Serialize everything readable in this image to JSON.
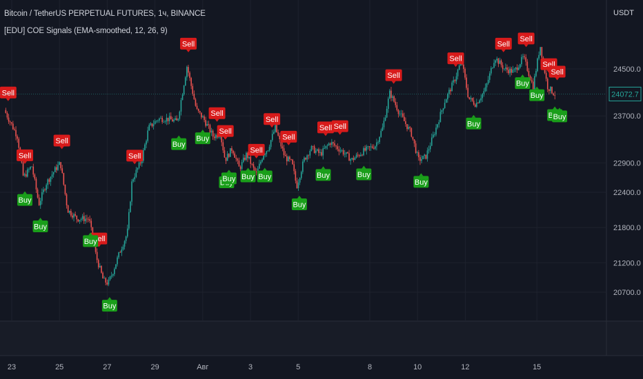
{
  "header": {
    "symbol_line": "Bitcoin / TetherUS PERPETUAL FUTURES, 1ч, BINANCE",
    "indicator_line": "[EDU] COE Signals (EMA-smoothed, 12, 26, 9)"
  },
  "price_axis": {
    "currency": "USDT"
  },
  "colors": {
    "background": "#131722",
    "grid": "#1e222d",
    "up": "#26a69a",
    "down": "#ef5350",
    "buy": "#1a9e1a",
    "sell": "#d81b1b",
    "price_label": "#26a69a"
  },
  "chart_data": {
    "type": "candlestick",
    "y_ticks": [
      24500.0,
      23700.0,
      22900.0,
      22400.0,
      21800.0,
      21200.0,
      20700.0
    ],
    "x_ticks": [
      {
        "label": "23",
        "day": 0
      },
      {
        "label": "25",
        "day": 2
      },
      {
        "label": "27",
        "day": 4
      },
      {
        "label": "29",
        "day": 6
      },
      {
        "label": "Авг",
        "day": 8
      },
      {
        "label": "3",
        "day": 10
      },
      {
        "label": "5",
        "day": 12
      },
      {
        "label": "8",
        "day": 15
      },
      {
        "label": "10",
        "day": 17
      },
      {
        "label": "12",
        "day": 19
      },
      {
        "label": "15",
        "day": 22
      }
    ],
    "x_range_days": [
      -0.3,
      23.0
    ],
    "ylim": [
      20300,
      25200
    ],
    "last_price": "24072.7",
    "last_price_value": 24072.7,
    "price_path": [
      [
        -0.25,
        23800
      ],
      [
        0.3,
        23350
      ],
      [
        0.55,
        22650
      ],
      [
        0.9,
        22850
      ],
      [
        1.2,
        22200
      ],
      [
        1.5,
        22550
      ],
      [
        1.9,
        22800
      ],
      [
        2.1,
        22900
      ],
      [
        2.4,
        22100
      ],
      [
        2.8,
        21950
      ],
      [
        3.3,
        21950
      ],
      [
        3.6,
        21300
      ],
      [
        3.9,
        20900
      ],
      [
        4.1,
        20850
      ],
      [
        4.3,
        21050
      ],
      [
        4.6,
        21400
      ],
      [
        4.9,
        21700
      ],
      [
        5.1,
        22600
      ],
      [
        5.5,
        22950
      ],
      [
        5.8,
        23500
      ],
      [
        6.2,
        23650
      ],
      [
        6.6,
        23650
      ],
      [
        7.0,
        23600
      ],
      [
        7.4,
        24550
      ],
      [
        7.8,
        23800
      ],
      [
        8.1,
        23650
      ],
      [
        8.5,
        23350
      ],
      [
        8.8,
        23400
      ],
      [
        9.0,
        22950
      ],
      [
        9.3,
        23150
      ],
      [
        9.6,
        22800
      ],
      [
        9.9,
        23050
      ],
      [
        10.3,
        22700
      ],
      [
        10.6,
        23050
      ],
      [
        10.8,
        23150
      ],
      [
        11.1,
        23500
      ],
      [
        11.5,
        23000
      ],
      [
        11.8,
        22900
      ],
      [
        12.0,
        22500
      ],
      [
        12.3,
        22950
      ],
      [
        12.6,
        23150
      ],
      [
        13.0,
        23050
      ],
      [
        13.4,
        23250
      ],
      [
        13.9,
        23100
      ],
      [
        14.3,
        22950
      ],
      [
        14.8,
        23100
      ],
      [
        15.3,
        23200
      ],
      [
        15.6,
        23500
      ],
      [
        15.9,
        24100
      ],
      [
        16.3,
        23750
      ],
      [
        16.8,
        23400
      ],
      [
        17.1,
        22950
      ],
      [
        17.4,
        23000
      ],
      [
        17.8,
        23450
      ],
      [
        18.2,
        23950
      ],
      [
        18.6,
        24300
      ],
      [
        18.9,
        24650
      ],
      [
        19.2,
        24000
      ],
      [
        19.5,
        23900
      ],
      [
        19.9,
        24150
      ],
      [
        20.3,
        24700
      ],
      [
        20.7,
        24500
      ],
      [
        21.1,
        24450
      ],
      [
        21.5,
        24700
      ],
      [
        21.9,
        24200
      ],
      [
        22.2,
        24900
      ],
      [
        22.5,
        24200
      ],
      [
        22.8,
        24072.7
      ]
    ],
    "signals": [
      {
        "type": "sell",
        "day": -0.15,
        "label": "Sell"
      },
      {
        "type": "sell",
        "day": 0.55,
        "label": "Sell"
      },
      {
        "type": "sell",
        "day": 2.1,
        "label": "Sell"
      },
      {
        "type": "sell",
        "day": 3.65,
        "label": "Sell"
      },
      {
        "type": "sell",
        "day": 5.15,
        "label": "Sell"
      },
      {
        "type": "sell",
        "day": 7.4,
        "label": "Sell"
      },
      {
        "type": "sell",
        "day": 8.6,
        "label": "Sell"
      },
      {
        "type": "sell",
        "day": 8.95,
        "label": "Sell"
      },
      {
        "type": "sell",
        "day": 10.25,
        "label": "Sell"
      },
      {
        "type": "sell",
        "day": 10.9,
        "label": "Sell"
      },
      {
        "type": "sell",
        "day": 11.6,
        "label": "Sell"
      },
      {
        "type": "sell",
        "day": 13.15,
        "label": "Sell"
      },
      {
        "type": "sell",
        "day": 13.75,
        "label": "Sell"
      },
      {
        "type": "sell",
        "day": 16.0,
        "label": "Sell"
      },
      {
        "type": "sell",
        "day": 18.6,
        "label": "Sell"
      },
      {
        "type": "sell",
        "day": 20.6,
        "label": "Sell"
      },
      {
        "type": "sell",
        "day": 21.55,
        "label": "Sell"
      },
      {
        "type": "sell",
        "day": 22.5,
        "label": "Sell"
      },
      {
        "type": "sell",
        "day": 22.85,
        "label": "Sell"
      },
      {
        "type": "buy",
        "day": 0.55,
        "label": "Buy"
      },
      {
        "type": "buy",
        "day": 1.2,
        "label": "Buy"
      },
      {
        "type": "buy",
        "day": 3.3,
        "label": "Buy"
      },
      {
        "type": "buy",
        "day": 4.1,
        "label": "Buy"
      },
      {
        "type": "buy",
        "day": 7.0,
        "label": "Buy"
      },
      {
        "type": "buy",
        "day": 8.0,
        "label": "Buy"
      },
      {
        "type": "buy",
        "day": 9.0,
        "label": "Buy"
      },
      {
        "type": "buy",
        "day": 9.1,
        "label": "Buy"
      },
      {
        "type": "buy",
        "day": 9.9,
        "label": "Buy"
      },
      {
        "type": "buy",
        "day": 10.6,
        "label": "Buy"
      },
      {
        "type": "buy",
        "day": 12.05,
        "label": "Buy"
      },
      {
        "type": "buy",
        "day": 13.05,
        "label": "Buy"
      },
      {
        "type": "buy",
        "day": 14.75,
        "label": "Buy"
      },
      {
        "type": "buy",
        "day": 17.15,
        "label": "Buy"
      },
      {
        "type": "buy",
        "day": 19.35,
        "label": "Buy"
      },
      {
        "type": "buy",
        "day": 21.4,
        "label": "Buy"
      },
      {
        "type": "buy",
        "day": 22.0,
        "label": "Buy"
      },
      {
        "type": "buy",
        "day": 22.75,
        "label": "Buy"
      },
      {
        "type": "buy",
        "day": 22.95,
        "label": "Buy"
      }
    ]
  }
}
